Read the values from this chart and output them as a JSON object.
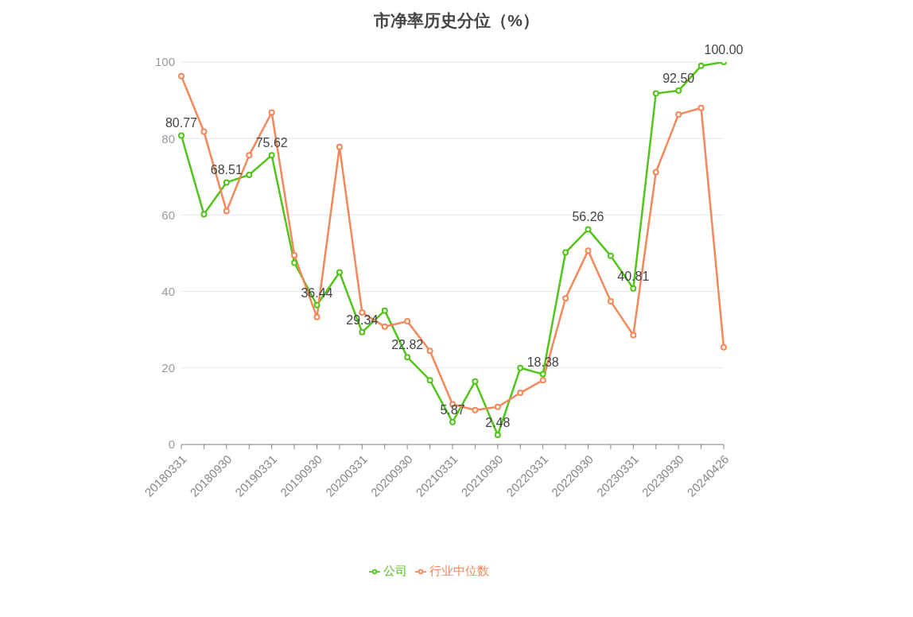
{
  "chart_data": {
    "type": "line",
    "title": "市净率历史分位（%）",
    "categories": [
      "20180331",
      null,
      "20180930",
      null,
      "20190331",
      null,
      "20190930",
      null,
      "20200331",
      null,
      "20200930",
      null,
      "20210331",
      null,
      "20210930",
      null,
      "20220331",
      null,
      "20220930",
      null,
      "20230331",
      null,
      "20230930",
      null,
      "20240426"
    ],
    "series": [
      {
        "name": "公司",
        "color": "#52c41a",
        "values": [
          80.77,
          60.2,
          68.51,
          70.5,
          75.62,
          47.5,
          36.44,
          45,
          29.34,
          35,
          22.82,
          16.8,
          5.87,
          16.5,
          2.48,
          20,
          18.38,
          50.2,
          56.26,
          49.3,
          40.81,
          91.8,
          92.5,
          99,
          100.0
        ],
        "value_labels": [
          "80.77",
          null,
          "68.51",
          null,
          "75.62",
          null,
          "36.44",
          null,
          "29.34",
          null,
          "22.82",
          null,
          "5.87",
          null,
          "2.48",
          null,
          "18.38",
          null,
          "56.26",
          null,
          "40.81",
          null,
          "92.50",
          null,
          "100.00"
        ]
      },
      {
        "name": "行业中位数",
        "color": "#f5885a",
        "values": [
          96.3,
          81.8,
          61,
          75.6,
          86.8,
          49.5,
          33.3,
          77.8,
          34.5,
          30.8,
          32.2,
          24.5,
          10.5,
          9,
          9.8,
          13.5,
          16.8,
          38.2,
          50.7,
          37.4,
          28.6,
          71.2,
          86.3,
          88,
          25.4
        ]
      }
    ],
    "ylim": [
      0,
      100
    ],
    "yticks": [
      0,
      20,
      40,
      60,
      80,
      100
    ],
    "grid": "y",
    "legend": "bottom",
    "marker": "circle",
    "line_style": "solid"
  }
}
